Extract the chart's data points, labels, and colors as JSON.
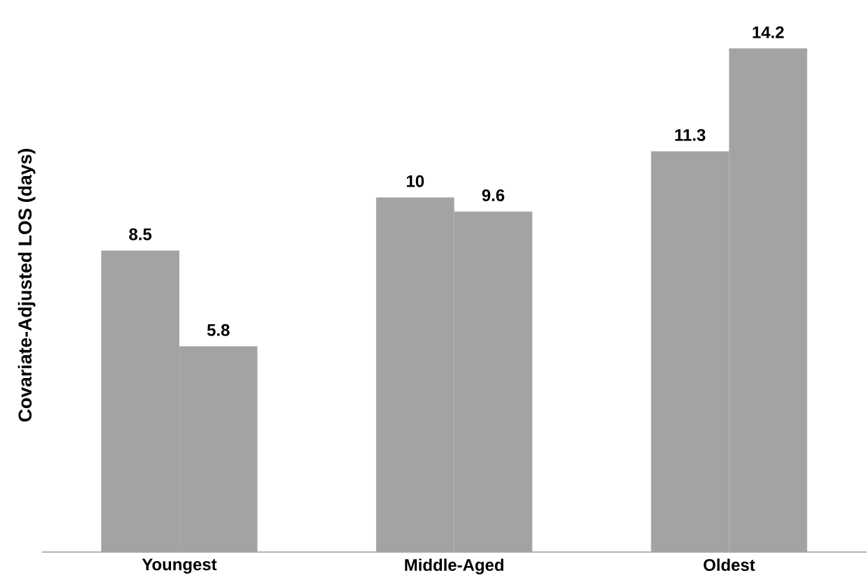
{
  "chart_data": {
    "type": "bar",
    "ylabel": "Covariate-Adjusted LOS (days)",
    "categories": [
      "Youngest",
      "Middle-Aged",
      "Oldest"
    ],
    "series": [
      {
        "color": "#a3a3a3",
        "values": [
          8.5,
          10,
          11.3
        ]
      },
      {
        "color": "#a3a3a3",
        "values": [
          5.8,
          9.6,
          14.2
        ]
      }
    ],
    "data_labels": true
  }
}
